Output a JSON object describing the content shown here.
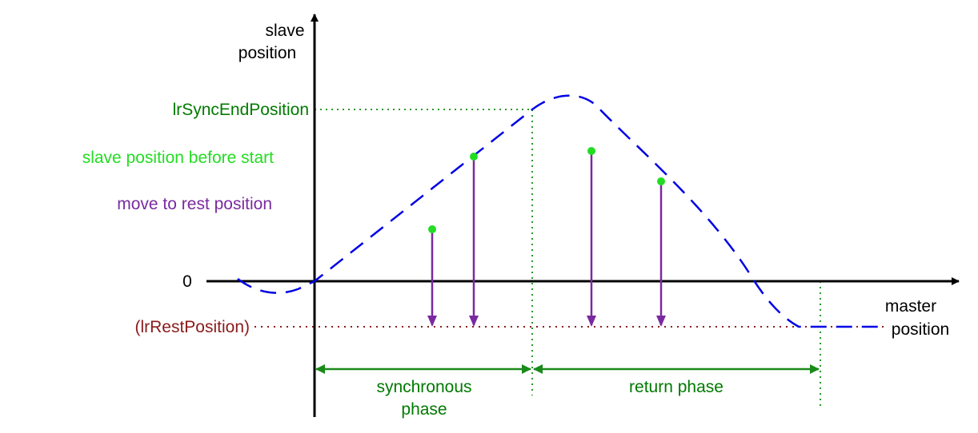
{
  "axes": {
    "y_label_line1": "slave",
    "y_label_line2": "position",
    "x_label_line1": "master",
    "x_label_line2": "position"
  },
  "levels": {
    "sync_end": "lrSyncEndPosition",
    "zero": "0",
    "rest": "(lrRestPosition)"
  },
  "legend": {
    "before_start": "slave position before start",
    "move_to_rest": "move to rest position"
  },
  "phases": {
    "synchronous_line1": "synchronous",
    "synchronous_line2": "phase",
    "return": "return phase"
  },
  "colors": {
    "axis": "#000000",
    "curve": "#0000e6",
    "green_text": "#007a00",
    "bright_green": "#22dd22",
    "purple": "#7a2aa0",
    "dark_red": "#8b1a1a",
    "guide_green": "#2a9a2a"
  }
}
